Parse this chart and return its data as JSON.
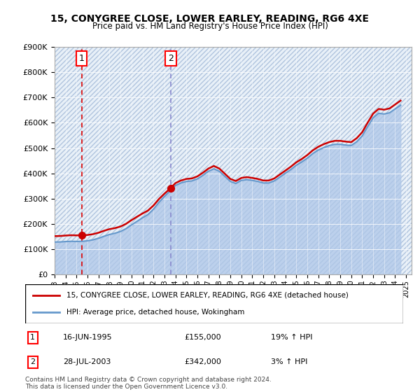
{
  "title": "15, CONYGREE CLOSE, LOWER EARLEY, READING, RG6 4XE",
  "subtitle": "Price paid vs. HM Land Registry's House Price Index (HPI)",
  "legend_line1": "15, CONYGREE CLOSE, LOWER EARLEY, READING, RG6 4XE (detached house)",
  "legend_line2": "HPI: Average price, detached house, Wokingham",
  "annotation1_label": "1",
  "annotation1_date": "16-JUN-1995",
  "annotation1_price": "£155,000",
  "annotation1_hpi": "19% ↑ HPI",
  "annotation2_label": "2",
  "annotation2_date": "28-JUL-2003",
  "annotation2_price": "£342,000",
  "annotation2_hpi": "3% ↑ HPI",
  "footnote": "Contains HM Land Registry data © Crown copyright and database right 2024.\nThis data is licensed under the Open Government Licence v3.0.",
  "sale1_year": 1995.46,
  "sale1_price": 155000,
  "sale2_year": 2003.57,
  "sale2_price": 342000,
  "hpi_color": "#aec6e8",
  "price_color": "#cc0000",
  "vline_color": "#dd0000",
  "background_hatch_color": "#dce8f5",
  "ylim_min": 0,
  "ylim_max": 900000,
  "xlim_min": 1993,
  "xlim_max": 2025.5
}
